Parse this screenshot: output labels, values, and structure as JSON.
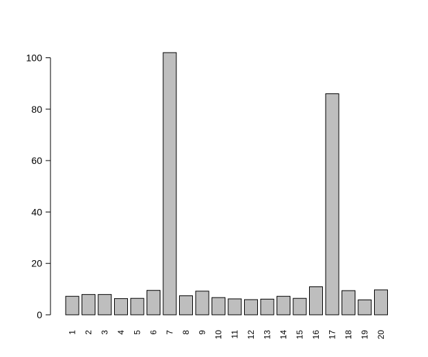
{
  "chart_data": {
    "type": "bar",
    "categories": [
      "1",
      "2",
      "3",
      "4",
      "5",
      "6",
      "7",
      "8",
      "9",
      "10",
      "11",
      "12",
      "13",
      "14",
      "15",
      "16",
      "17",
      "18",
      "19",
      "20"
    ],
    "values": [
      7.2,
      7.9,
      7.9,
      6.3,
      6.4,
      9.5,
      102.0,
      7.4,
      9.2,
      6.7,
      6.2,
      5.9,
      6.1,
      7.2,
      6.4,
      10.9,
      86.0,
      9.4,
      5.8,
      9.7
    ],
    "ylim": [
      0,
      102
    ],
    "yticks": [
      "0",
      "20",
      "40",
      "60",
      "80",
      "100"
    ],
    "title": "",
    "xlabel": "",
    "ylabel": "",
    "bar_color": "#bebebe",
    "bar_stroke": "#000000",
    "grid": false
  }
}
